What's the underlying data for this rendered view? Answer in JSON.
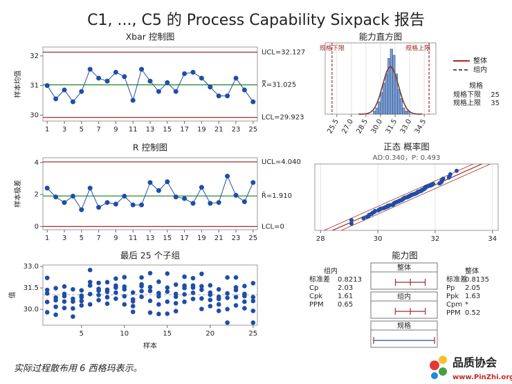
{
  "title": "C1, ..., C5 的 Process Capability Sixpack 报告",
  "chart_data": [
    {
      "type": "control",
      "title": "Xbar 控制图",
      "ylabel": "样本均值",
      "x": [
        1,
        2,
        3,
        4,
        5,
        6,
        7,
        8,
        9,
        10,
        11,
        12,
        13,
        14,
        15,
        16,
        17,
        18,
        19,
        20,
        21,
        22,
        23,
        24,
        25
      ],
      "values": [
        31.0,
        30.55,
        30.85,
        30.45,
        30.8,
        31.55,
        31.25,
        31.15,
        31.45,
        31.3,
        30.5,
        31.55,
        31.15,
        30.8,
        31.1,
        30.8,
        31.4,
        31.45,
        31.25,
        30.95,
        30.65,
        30.65,
        31.25,
        30.85,
        30.45
      ],
      "xlim": [
        0.5,
        25.5
      ],
      "xticks": [
        1,
        3,
        5,
        7,
        9,
        11,
        13,
        15,
        17,
        19,
        21,
        23,
        25
      ],
      "ylim": [
        29.8,
        32.3
      ],
      "yticks": [
        30,
        31,
        32
      ],
      "ucl": {
        "value": 32.127,
        "label": "UCL=32.127"
      },
      "center": {
        "value": 31.025,
        "label": "X̿=31.025"
      },
      "lcl": {
        "value": 29.923,
        "label": "LCL=29.923"
      },
      "color": "#1f4ea8",
      "center_color": "#2e8b2e",
      "limit_color": "#a52a2a"
    },
    {
      "type": "histogram",
      "title": "能力直方图",
      "bins": [
        29.25,
        29.5,
        29.75,
        30.0,
        30.25,
        30.5,
        30.75,
        31.0,
        31.25,
        31.5,
        31.75,
        32.0,
        32.25,
        32.5,
        32.75,
        33.0
      ],
      "counts": [
        1,
        2,
        4,
        7,
        10,
        13,
        18,
        21,
        19,
        13,
        8,
        5,
        2,
        1,
        1
      ],
      "color": "#7b9fd4",
      "xlim": [
        24.3,
        35.7
      ],
      "xticks": [
        25.5,
        {
          "value": 27,
          "label": "27.0"
        },
        28.5,
        {
          "value": 30,
          "label": "30.0"
        },
        31.5,
        {
          "value": 33,
          "label": "33.0"
        },
        34.5
      ],
      "ylim": [
        0,
        23
      ],
      "lsl": {
        "value": 25,
        "label": "规格下限"
      },
      "usl": {
        "value": 35,
        "label": "规格上限"
      },
      "series": [
        {
          "name": "整体",
          "color": "#b22222"
        },
        {
          "name": "组内",
          "color": "#555555"
        }
      ],
      "spec_title": "规格"
    },
    {
      "type": "control",
      "title": "R 控制图",
      "ylabel": "样本极差",
      "x": [
        1,
        2,
        3,
        4,
        5,
        6,
        7,
        8,
        9,
        10,
        11,
        12,
        13,
        14,
        15,
        16,
        17,
        18,
        19,
        20,
        21,
        22,
        23,
        24,
        25
      ],
      "values": [
        2.4,
        1.85,
        1.5,
        1.9,
        1.05,
        2.4,
        1.2,
        1.5,
        1.4,
        1.9,
        1.35,
        1.35,
        2.75,
        2.25,
        2.8,
        1.85,
        1.75,
        1.45,
        2.45,
        1.45,
        1.5,
        3.15,
        1.95,
        1.55,
        2.75
      ],
      "xlim": [
        0.5,
        25.5
      ],
      "xticks": [
        1,
        3,
        5,
        7,
        9,
        11,
        13,
        15,
        17,
        19,
        21,
        23,
        25
      ],
      "ylim": [
        -0.2,
        4.3
      ],
      "yticks": [
        0,
        2,
        4
      ],
      "ucl": {
        "value": 4.04,
        "label": "UCL=4.040"
      },
      "center": {
        "value": 1.91,
        "label": "R̄=1.910"
      },
      "lcl": {
        "value": 0,
        "label": "LCL=0"
      },
      "color": "#1f4ea8",
      "center_color": "#2e8b2e",
      "limit_color": "#a52a2a"
    },
    {
      "type": "probability",
      "title": "正态 概率图",
      "subtitle": "AD:0.340，P: 0.493",
      "xlim": [
        27.8,
        34.2
      ],
      "xticks": [
        28,
        30,
        32,
        34
      ],
      "color": "#1f4ea8"
    },
    {
      "type": "subgroups",
      "title": "最后 25 个子组",
      "ylabel": "值",
      "xlabel": "样本",
      "x": [
        1,
        2,
        3,
        4,
        5,
        6,
        7,
        8,
        9,
        10,
        11,
        12,
        13,
        14,
        15,
        16,
        17,
        18,
        19,
        20,
        21,
        22,
        23,
        24,
        25
      ],
      "values": [
        [
          29.8,
          30.52,
          31.12,
          31.36,
          32.2
        ],
        [
          29.63,
          30.18,
          30.64,
          30.83,
          31.48
        ],
        [
          30.1,
          30.55,
          30.93,
          31.08,
          31.6
        ],
        [
          29.5,
          30.07,
          30.55,
          30.74,
          31.4
        ],
        [
          30.28,
          30.59,
          30.85,
          30.96,
          31.33
        ],
        [
          30.35,
          31.07,
          31.67,
          31.91,
          32.75
        ],
        [
          30.65,
          31.01,
          31.31,
          31.43,
          31.85
        ],
        [
          30.4,
          30.85,
          31.23,
          31.38,
          31.9
        ],
        [
          30.75,
          31.17,
          31.52,
          31.66,
          32.15
        ],
        [
          30.35,
          30.92,
          31.4,
          31.59,
          32.25
        ],
        [
          29.83,
          30.23,
          30.57,
          30.7,
          31.18
        ],
        [
          30.88,
          31.28,
          31.62,
          31.75,
          32.23
        ],
        [
          29.78,
          30.6,
          31.29,
          31.56,
          32.53
        ],
        [
          29.68,
          30.35,
          30.91,
          31.14,
          31.93
        ],
        [
          29.7,
          30.54,
          31.24,
          31.52,
          32.5
        ],
        [
          29.88,
          30.43,
          30.89,
          31.08,
          31.73
        ],
        [
          30.53,
          31.05,
          31.49,
          31.66,
          32.28
        ],
        [
          30.73,
          31.16,
          31.52,
          31.67,
          32.18
        ],
        [
          30.03,
          30.76,
          31.37,
          31.62,
          32.48
        ],
        [
          30.23,
          30.66,
          31.02,
          31.17,
          31.68
        ],
        [
          29.9,
          30.35,
          30.73,
          30.88,
          31.4
        ],
        [
          29.08,
          30.02,
          30.81,
          31.12,
          32.23
        ],
        [
          30.28,
          30.86,
          31.35,
          31.54,
          32.23
        ],
        [
          30.08,
          30.54,
          30.93,
          31.08,
          31.63
        ],
        [
          29.08,
          29.9,
          30.59,
          30.86,
          31.83
        ]
      ],
      "xlim": [
        0.5,
        25.5
      ],
      "xticks": [
        5,
        10,
        15,
        20,
        25
      ],
      "ylim": [
        28.9,
        33.1
      ],
      "yticks": [
        {
          "value": 30,
          "label": "30.0"
        },
        31.5,
        {
          "value": 33,
          "label": "33.0"
        }
      ],
      "color": "#1f4ea8"
    },
    {
      "type": "capability",
      "title": "能力图",
      "within": {
        "title": "组内",
        "stats": [
          {
            "label": "标准差",
            "value": 0.8213
          },
          {
            "label": "Cp",
            "value": 2.03
          },
          {
            "label": "Cpk",
            "value": 1.61
          },
          {
            "label": "PPM",
            "value": 0.65
          }
        ]
      },
      "overall": {
        "title": "整体",
        "stats": [
          {
            "label": "标准差",
            "value": 0.8135
          },
          {
            "label": "Pp",
            "value": 2.05
          },
          {
            "label": "Ppk",
            "value": 1.63
          },
          {
            "label": "Cpm",
            "value": "*"
          },
          {
            "label": "PPM",
            "value": 0.52
          }
        ]
      },
      "boxes": [
        "整体",
        "组内",
        "规格"
      ]
    }
  ],
  "footer": "实际过程散布用 6 西格玛表示。",
  "logo": {
    "name": "品质协会",
    "url": "www.PinZhi.org"
  }
}
